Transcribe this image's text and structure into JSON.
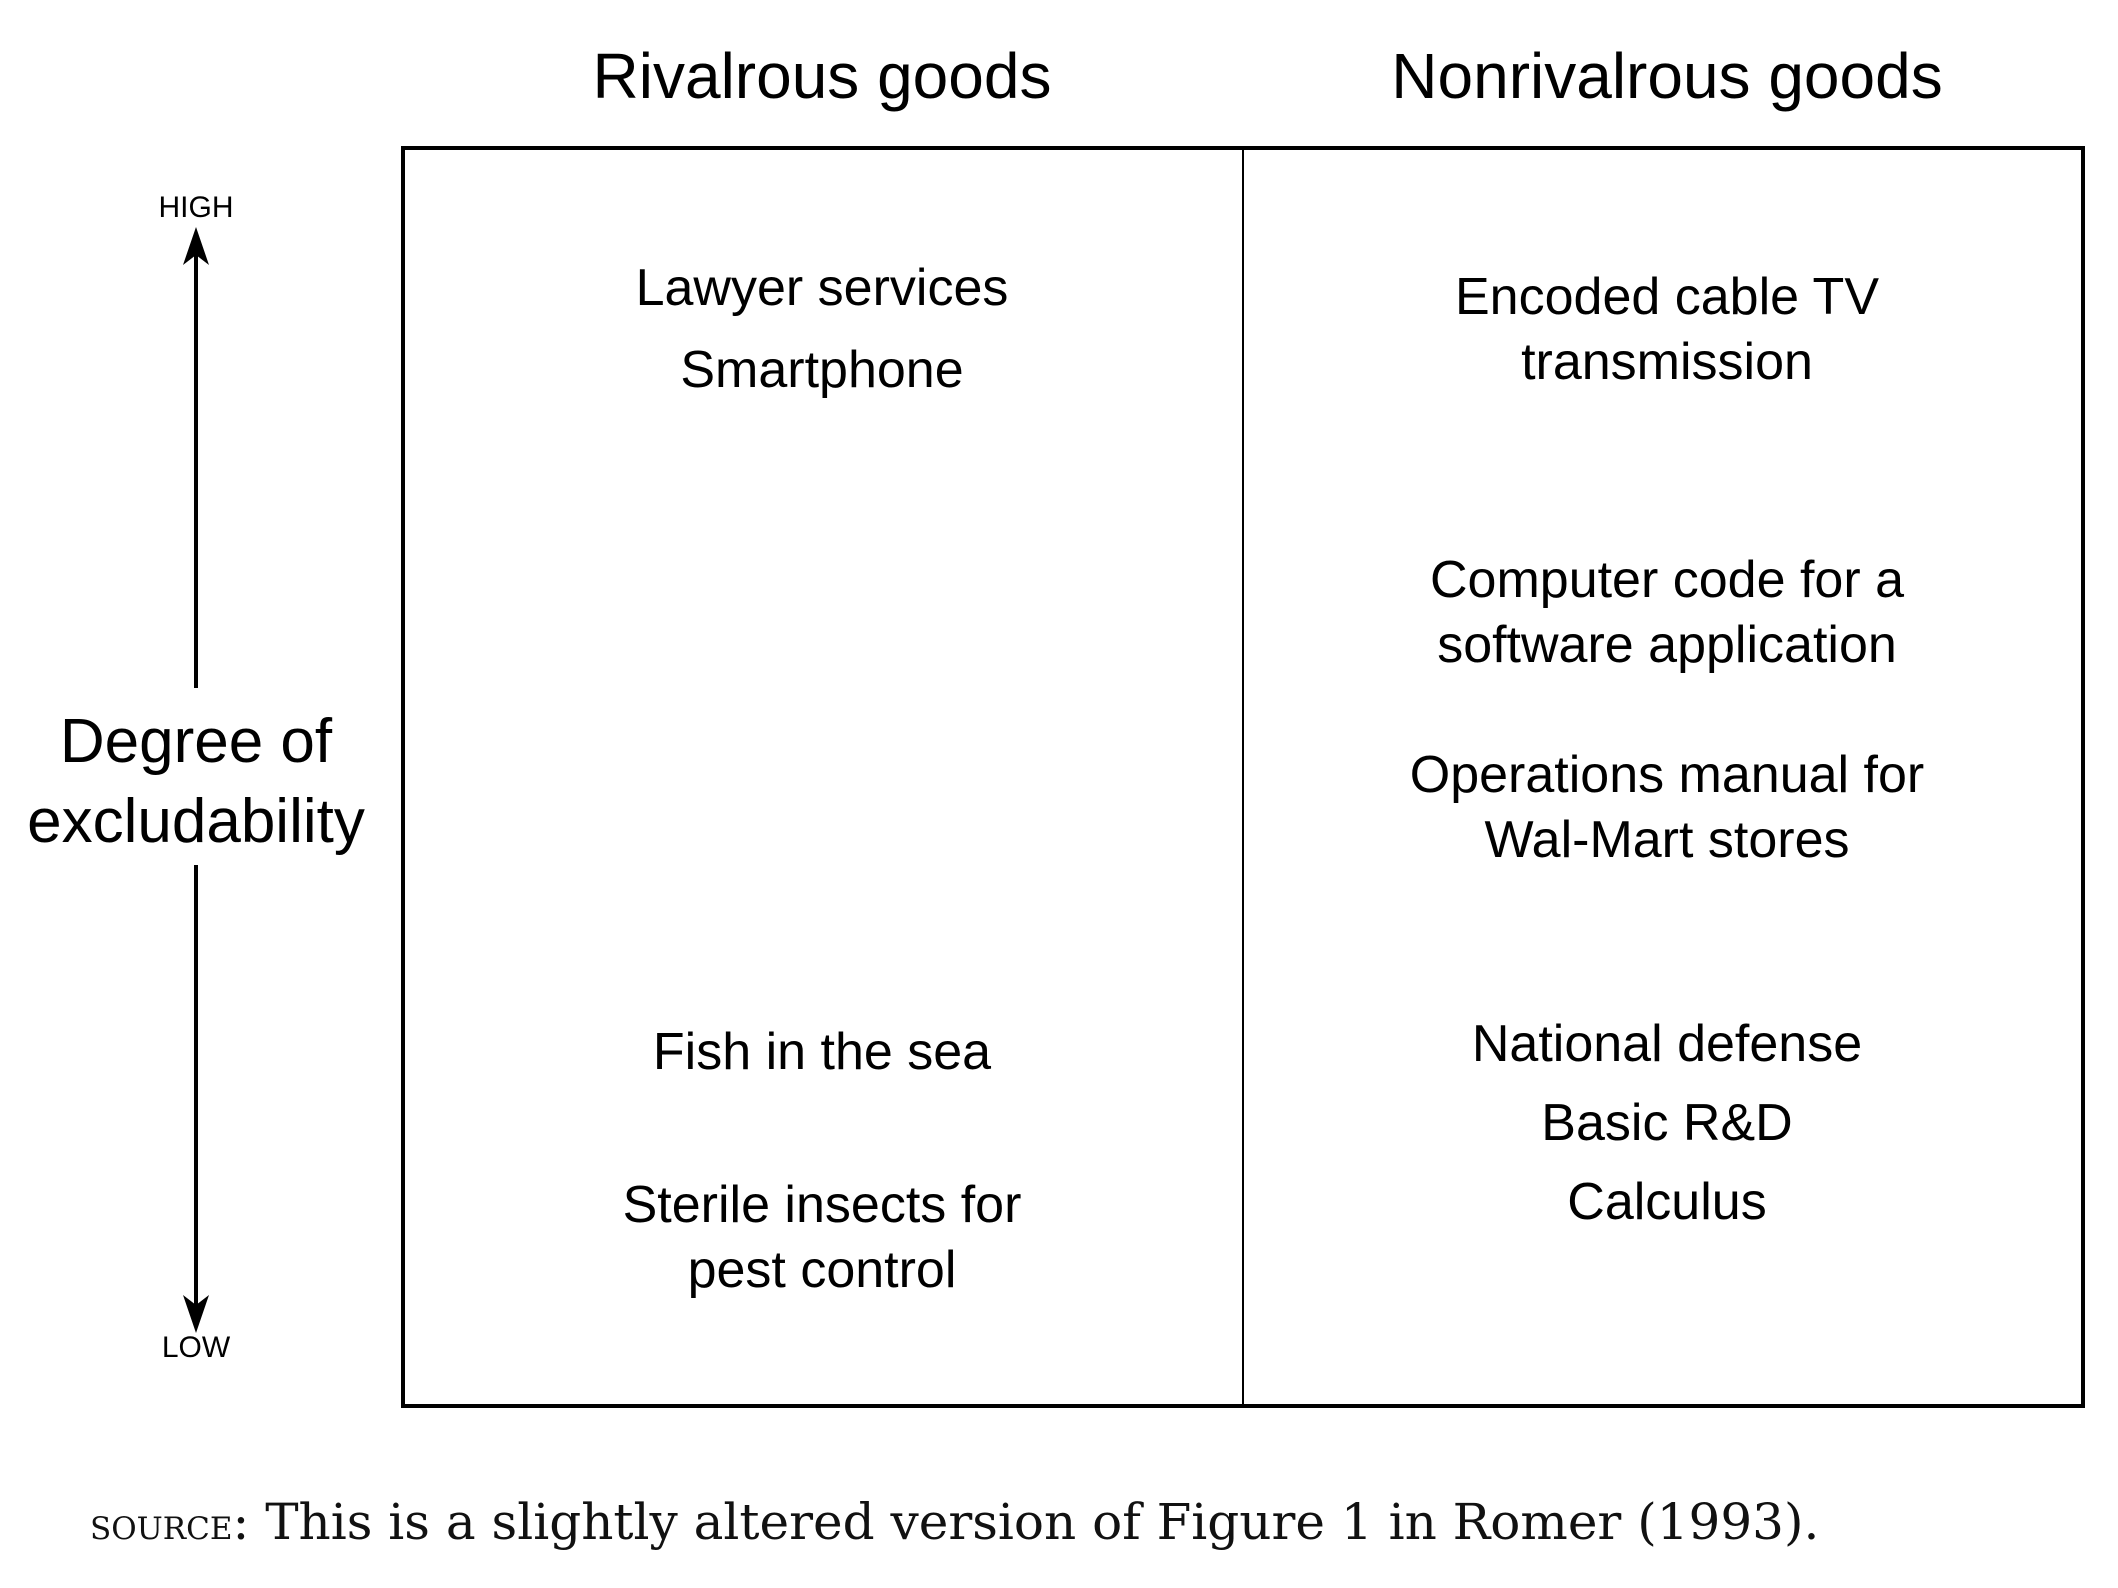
{
  "headers": {
    "rival": "Rivalrous goods",
    "nonrival": "Nonrivalrous goods"
  },
  "axis": {
    "title_line1": "Degree of",
    "title_line2": "excludability",
    "high": "HIGH",
    "low": "LOW"
  },
  "rival_items": {
    "lawyer": "Lawyer services",
    "smartphone": "Smartphone",
    "fish": "Fish in the sea",
    "insects_line1": "Sterile insects for",
    "insects_line2": "pest control"
  },
  "nonrival_items": {
    "cable_line1": "Encoded cable TV",
    "cable_line2": "transmission",
    "code_line1": "Computer code for a",
    "code_line2": "software application",
    "manual_line1": "Operations manual for",
    "manual_line2": "Wal-Mart stores",
    "defense": "National defense",
    "rd": "Basic R&D",
    "calculus": "Calculus"
  },
  "source": {
    "label": "SOURCE",
    "text": ": This is a slightly altered version of Figure 1 in Romer (1993)."
  }
}
